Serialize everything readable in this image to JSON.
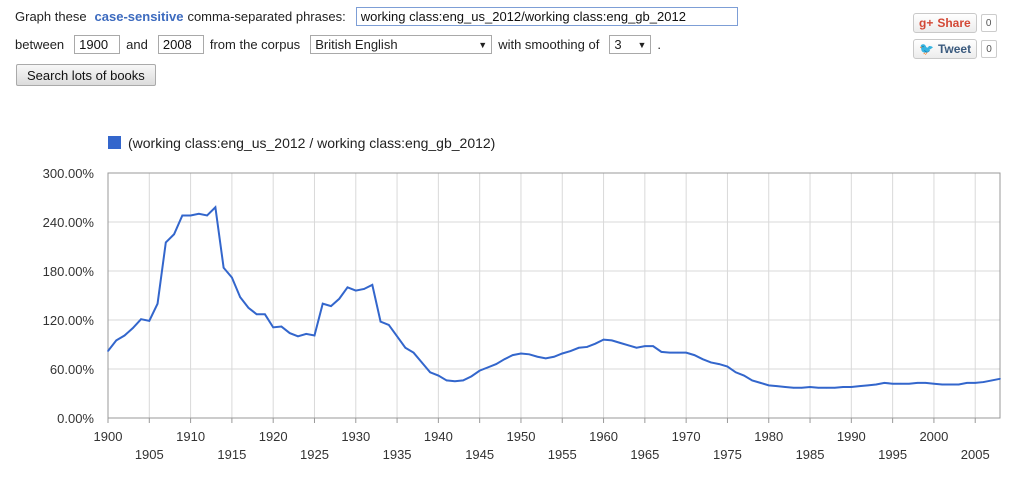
{
  "query": {
    "intro": "Graph these",
    "keyword": "case-sensitive",
    "suffix": "comma-separated phrases:",
    "phrases": "working class:eng_us_2012/working class:eng_gb_2012",
    "between_label": "between",
    "year_start": "1900",
    "and_label": "and",
    "year_end": "2008",
    "corpus_label": "from the corpus",
    "corpus": "British English",
    "smoothing_label": "with smoothing of",
    "smoothing": "3",
    "period": ".",
    "search_button": "Search lots of books"
  },
  "social": {
    "gplus_icon": "g+",
    "share_label": "Share",
    "share_count": "0",
    "tweet_icon": "bird",
    "tweet_label": "Tweet",
    "tweet_count": "0"
  },
  "chart_data": {
    "type": "line",
    "legend": "(working class:eng_us_2012 / working class:eng_gb_2012)",
    "series_color": "#3366cc",
    "xlim": [
      1900,
      2008
    ],
    "ylim": [
      0,
      300
    ],
    "y_ticks": [
      "0.00%",
      "60.00%",
      "120.00%",
      "180.00%",
      "240.00%",
      "300.00%"
    ],
    "y_tick_values": [
      0,
      60,
      120,
      180,
      240,
      300
    ],
    "x_ticks_top": [
      "1900",
      "1910",
      "1920",
      "1930",
      "1940",
      "1950",
      "1960",
      "1970",
      "1980",
      "1990",
      "2000"
    ],
    "x_ticks_bottom": [
      "1905",
      "1915",
      "1925",
      "1935",
      "1945",
      "1955",
      "1965",
      "1975",
      "1985",
      "1995",
      "2005"
    ],
    "grid": true,
    "x": [
      1900,
      1901,
      1902,
      1903,
      1904,
      1905,
      1906,
      1907,
      1908,
      1909,
      1910,
      1911,
      1912,
      1913,
      1914,
      1915,
      1916,
      1917,
      1918,
      1919,
      1920,
      1921,
      1922,
      1923,
      1924,
      1925,
      1926,
      1927,
      1928,
      1929,
      1930,
      1931,
      1932,
      1933,
      1934,
      1935,
      1936,
      1937,
      1938,
      1939,
      1940,
      1941,
      1942,
      1943,
      1944,
      1945,
      1946,
      1947,
      1948,
      1949,
      1950,
      1951,
      1952,
      1953,
      1954,
      1955,
      1956,
      1957,
      1958,
      1959,
      1960,
      1961,
      1962,
      1963,
      1964,
      1965,
      1966,
      1967,
      1968,
      1969,
      1970,
      1971,
      1972,
      1973,
      1974,
      1975,
      1976,
      1977,
      1978,
      1979,
      1980,
      1981,
      1982,
      1983,
      1984,
      1985,
      1986,
      1987,
      1988,
      1989,
      1990,
      1991,
      1992,
      1993,
      1994,
      1995,
      1996,
      1997,
      1998,
      1999,
      2000,
      2001,
      2002,
      2003,
      2004,
      2005,
      2006,
      2007,
      2008
    ],
    "y": [
      82,
      95,
      101,
      110,
      121,
      119,
      140,
      215,
      225,
      248,
      248,
      250,
      248,
      258,
      184,
      172,
      148,
      135,
      127,
      127,
      111,
      112,
      104,
      100,
      103,
      101,
      140,
      137,
      146,
      160,
      156,
      158,
      163,
      118,
      114,
      100,
      86,
      80,
      68,
      56,
      52,
      46,
      45,
      46,
      51,
      58,
      62,
      66,
      72,
      77,
      79,
      78,
      75,
      73,
      75,
      79,
      82,
      86,
      87,
      91,
      96,
      95,
      92,
      89,
      86,
      88,
      88,
      81,
      80,
      80,
      80,
      77,
      72,
      68,
      66,
      63,
      56,
      52,
      46,
      43,
      40,
      39,
      38,
      37,
      37,
      38,
      37,
      37,
      37,
      38,
      38,
      39,
      40,
      41,
      43,
      42,
      42,
      42,
      43,
      43,
      42,
      41,
      41,
      41,
      43,
      43,
      44,
      46,
      48
    ]
  }
}
